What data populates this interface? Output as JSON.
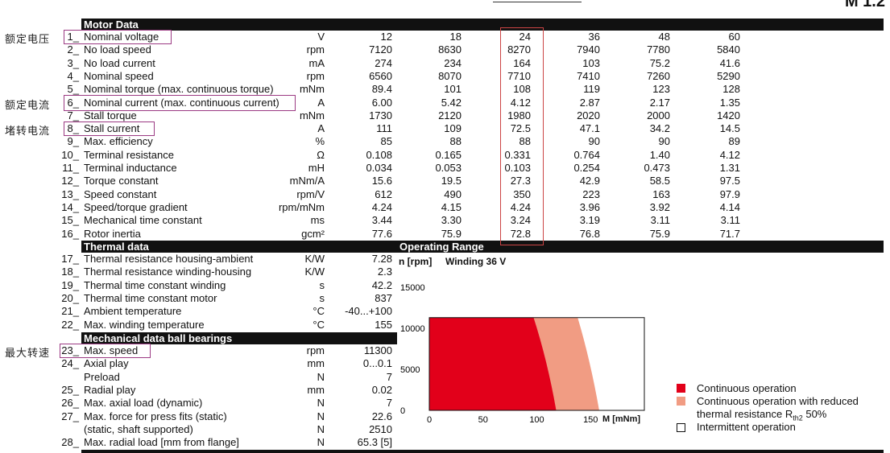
{
  "top_fragment": "M 1.2",
  "motor_data": {
    "title": "Motor Data",
    "columns": [
      "12",
      "18",
      "24",
      "36",
      "48",
      "60"
    ],
    "rows": [
      {
        "num": "1_",
        "label": "Nominal voltage",
        "unit": "V",
        "values": [
          "12",
          "18",
          "24",
          "36",
          "48",
          "60"
        ]
      },
      {
        "num": "2_",
        "label": "No load speed",
        "unit": "rpm",
        "values": [
          "7120",
          "8630",
          "8270",
          "7940",
          "7780",
          "5840"
        ]
      },
      {
        "num": "3_",
        "label": "No load current",
        "unit": "mA",
        "values": [
          "274",
          "234",
          "164",
          "103",
          "75.2",
          "41.6"
        ]
      },
      {
        "num": "4_",
        "label": "Nominal speed",
        "unit": "rpm",
        "values": [
          "6560",
          "8070",
          "7710",
          "7410",
          "7260",
          "5290"
        ]
      },
      {
        "num": "5_",
        "label": "Nominal torque (max. continuous torque)",
        "unit": "mNm",
        "values": [
          "89.4",
          "101",
          "108",
          "119",
          "123",
          "128"
        ]
      },
      {
        "num": "6_",
        "label": "Nominal current (max. continuous current)",
        "unit": "A",
        "values": [
          "6.00",
          "5.42",
          "4.12",
          "2.87",
          "2.17",
          "1.35"
        ]
      },
      {
        "num": "7_",
        "label": "Stall torque",
        "unit": "mNm",
        "values": [
          "1730",
          "2120",
          "1980",
          "2020",
          "2000",
          "1420"
        ]
      },
      {
        "num": "8_",
        "label": "Stall current",
        "unit": "A",
        "values": [
          "111",
          "109",
          "72.5",
          "47.1",
          "34.2",
          "14.5"
        ]
      },
      {
        "num": "9_",
        "label": "Max. efficiency",
        "unit": "%",
        "values": [
          "85",
          "88",
          "88",
          "90",
          "90",
          "89"
        ]
      },
      {
        "num": "10_",
        "label": "Terminal resistance",
        "unit": "Ω",
        "values": [
          "0.108",
          "0.165",
          "0.331",
          "0.764",
          "1.40",
          "4.12"
        ]
      },
      {
        "num": "11_",
        "label": "Terminal inductance",
        "unit": "mH",
        "values": [
          "0.034",
          "0.053",
          "0.103",
          "0.254",
          "0.473",
          "1.31"
        ]
      },
      {
        "num": "12_",
        "label": "Torque constant",
        "unit": "mNm/A",
        "values": [
          "15.6",
          "19.5",
          "27.3",
          "42.9",
          "58.5",
          "97.5"
        ]
      },
      {
        "num": "13_",
        "label": "Speed constant",
        "unit": "rpm/V",
        "values": [
          "612",
          "490",
          "350",
          "223",
          "163",
          "97.9"
        ]
      },
      {
        "num": "14_",
        "label": "Speed/torque gradient",
        "unit": "rpm/mNm",
        "values": [
          "4.24",
          "4.15",
          "4.24",
          "3.96",
          "3.92",
          "4.14"
        ]
      },
      {
        "num": "15_",
        "label": "Mechanical time constant",
        "unit": "ms",
        "values": [
          "3.44",
          "3.30",
          "3.24",
          "3.19",
          "3.11",
          "3.11"
        ]
      },
      {
        "num": "16_",
        "label": "Rotor inertia",
        "unit": "gcm²",
        "values": [
          "77.6",
          "75.9",
          "72.8",
          "76.8",
          "75.9",
          "71.7"
        ]
      }
    ]
  },
  "thermal_data": {
    "title": "Thermal data",
    "rows": [
      {
        "num": "17_",
        "label": "Thermal resistance housing-ambient",
        "unit": "K/W",
        "value": "7.28"
      },
      {
        "num": "18_",
        "label": "Thermal resistance winding-housing",
        "unit": "K/W",
        "value": "2.3"
      },
      {
        "num": "19_",
        "label": "Thermal time constant winding",
        "unit": "s",
        "value": "42.2"
      },
      {
        "num": "20_",
        "label": "Thermal time constant motor",
        "unit": "s",
        "value": "837"
      },
      {
        "num": "21_",
        "label": "Ambient temperature",
        "unit": "°C",
        "value": "-40...+100"
      },
      {
        "num": "22_",
        "label": "Max. winding temperature",
        "unit": "°C",
        "value": "155"
      }
    ]
  },
  "mechanical_data": {
    "title": "Mechanical data ball bearings",
    "rows": [
      {
        "num": "23_",
        "label": "Max. speed",
        "unit": "rpm",
        "value": "11300"
      },
      {
        "num": "24_",
        "label": "Axial play",
        "unit": "mm",
        "value": "0...0.1"
      },
      {
        "num": "",
        "label": "Preload",
        "unit": "N",
        "value": "7"
      },
      {
        "num": "25_",
        "label": "Radial play",
        "unit": "mm",
        "value": "0.02"
      },
      {
        "num": "26_",
        "label": "Max. axial load (dynamic)",
        "unit": "N",
        "value": "7"
      },
      {
        "num": "27_",
        "label": "Max. force for press fits (static)",
        "unit": "N",
        "value": "22.6"
      },
      {
        "num": "",
        "label": "(static, shaft supported)",
        "unit": "N",
        "value": "2510"
      },
      {
        "num": "28_",
        "label": "Max. radial load [mm from flange]",
        "unit": "N",
        "value": "65.3 [5]"
      }
    ]
  },
  "annotations": {
    "voltage": "额定电压",
    "current": "额定电流",
    "stall": "堵转电流",
    "speed": "最大转速"
  },
  "operating_range": {
    "title": "Operating Range",
    "ylabel": "n [rpm]",
    "winding": "Winding 36 V",
    "xlabel": "M [mNm]",
    "legend": {
      "continuous": "Continuous operation",
      "reduced_1": "Continuous operation with reduced",
      "reduced_2": "thermal resistance R",
      "reduced_sub": "th2",
      "reduced_3": " 50%",
      "intermittent": "Intermittent operation"
    }
  },
  "chart_data": {
    "type": "area",
    "title": "Operating Range",
    "xlabel": "M [mNm]",
    "ylabel": "n [rpm]",
    "xlim": [
      0,
      200
    ],
    "ylim": [
      0,
      15000
    ],
    "x_ticks": [
      "0",
      "50",
      "100",
      "150"
    ],
    "y_ticks": [
      "0",
      "5000",
      "10000",
      "15000"
    ],
    "series": [
      {
        "name": "Continuous operation",
        "color": "#e2001a",
        "boundary": [
          {
            "x": 97,
            "y": 11300
          },
          {
            "x": 110,
            "y": 6000
          },
          {
            "x": 118,
            "y": 0
          }
        ]
      },
      {
        "name": "Continuous operation with reduced thermal resistance Rth2 50%",
        "color": "#f19c83",
        "boundary": [
          {
            "x": 138,
            "y": 11300
          },
          {
            "x": 150,
            "y": 6000
          },
          {
            "x": 158,
            "y": 0
          }
        ]
      }
    ],
    "legend": "right"
  },
  "colors": {
    "continuous": "#e2001a",
    "reduced": "#f19c83",
    "highlight": "#9b3a83",
    "column_highlight": "#cc4444"
  }
}
